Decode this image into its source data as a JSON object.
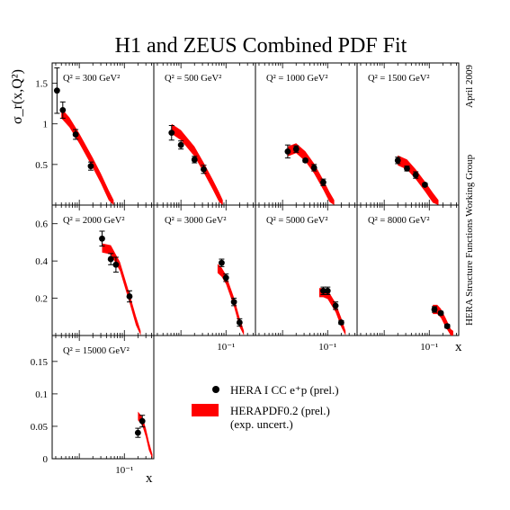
{
  "title": "H1 and ZEUS Combined PDF Fit",
  "date_label": "April 2009",
  "group_label": "HERA Structure Functions Working Group",
  "ylabel": "σ_r(x,Q²)",
  "xlabel": "x",
  "legend": {
    "data_label": "HERA I CC e⁺p (prel.)",
    "fit_label": "HERAPDF0.2 (prel.)",
    "fit_sublabel": "(exp. uncert.)"
  },
  "colors": {
    "fit": "#ff0000",
    "data": "#000000"
  },
  "chart_data": {
    "type": "scatter",
    "xscale": "log",
    "xlim": [
      0.0025,
      0.45
    ],
    "rows": [
      {
        "ylim": [
          0,
          1.75
        ],
        "yticks": [
          0.5,
          1,
          1.5
        ],
        "ytick_labels": [
          "0.5",
          "1",
          "1.5"
        ]
      },
      {
        "ylim": [
          0,
          0.7
        ],
        "yticks": [
          0.2,
          0.4,
          0.6
        ],
        "ytick_labels": [
          "0.2",
          "0.4",
          "0.6"
        ]
      },
      {
        "ylim": [
          0,
          0.19
        ],
        "yticks": [
          0,
          0.05,
          0.1,
          0.15
        ],
        "ytick_labels": [
          "0",
          "0.05",
          "0.1",
          "0.15"
        ]
      }
    ],
    "xtick_label": "10⁻¹",
    "panels": [
      {
        "label": "Q² = 300 GeV²",
        "row": 0,
        "col": 0,
        "points": [
          [
            0.0032,
            1.41,
            0.28
          ],
          [
            0.0043,
            1.17,
            0.1
          ],
          [
            0.0083,
            0.87,
            0.06
          ],
          [
            0.018,
            0.48,
            0.05
          ]
        ],
        "fit": [
          [
            0.004,
            1.13
          ],
          [
            0.006,
            1.02
          ],
          [
            0.01,
            0.82
          ],
          [
            0.02,
            0.52
          ],
          [
            0.03,
            0.33
          ],
          [
            0.045,
            0.12
          ],
          [
            0.058,
            0.0
          ]
        ]
      },
      {
        "label": "Q² = 500 GeV²",
        "row": 0,
        "col": 1,
        "points": [
          [
            0.0062,
            0.89,
            0.09
          ],
          [
            0.01,
            0.74,
            0.05
          ],
          [
            0.02,
            0.56,
            0.04
          ],
          [
            0.032,
            0.44,
            0.05
          ]
        ],
        "fit": [
          [
            0.0062,
            0.94
          ],
          [
            0.01,
            0.86
          ],
          [
            0.02,
            0.66
          ],
          [
            0.032,
            0.46
          ],
          [
            0.05,
            0.26
          ],
          [
            0.07,
            0.1
          ],
          [
            0.085,
            0.0
          ]
        ]
      },
      {
        "label": "Q² = 1000 GeV²",
        "row": 0,
        "col": 2,
        "points": [
          [
            0.013,
            0.66,
            0.08
          ],
          [
            0.02,
            0.69,
            0.04
          ],
          [
            0.032,
            0.55,
            0.02
          ],
          [
            0.05,
            0.46,
            0.04
          ],
          [
            0.08,
            0.28,
            0.04
          ]
        ],
        "fit": [
          [
            0.013,
            0.66
          ],
          [
            0.02,
            0.7
          ],
          [
            0.032,
            0.6
          ],
          [
            0.05,
            0.45
          ],
          [
            0.08,
            0.25
          ],
          [
            0.11,
            0.1
          ],
          [
            0.14,
            0.0
          ]
        ]
      },
      {
        "label": "Q² = 1500 GeV²",
        "row": 0,
        "col": 3,
        "points": [
          [
            0.02,
            0.55,
            0.04
          ],
          [
            0.032,
            0.45,
            0.03
          ],
          [
            0.05,
            0.37,
            0.04
          ],
          [
            0.08,
            0.25,
            0.02
          ]
        ],
        "fit": [
          [
            0.02,
            0.55
          ],
          [
            0.032,
            0.5
          ],
          [
            0.05,
            0.38
          ],
          [
            0.08,
            0.23
          ],
          [
            0.12,
            0.09
          ],
          [
            0.16,
            0.0
          ]
        ]
      },
      {
        "label": "Q² = 2000 GeV²",
        "row": 1,
        "col": 0,
        "points": [
          [
            0.032,
            0.52,
            0.04
          ],
          [
            0.05,
            0.41,
            0.03
          ],
          [
            0.065,
            0.38,
            0.04
          ],
          [
            0.13,
            0.21,
            0.03
          ]
        ],
        "fit": [
          [
            0.032,
            0.47
          ],
          [
            0.05,
            0.46
          ],
          [
            0.08,
            0.37
          ],
          [
            0.13,
            0.2
          ],
          [
            0.18,
            0.08
          ],
          [
            0.23,
            0.0
          ]
        ]
      },
      {
        "label": "Q² = 3000 GeV²",
        "row": 1,
        "col": 1,
        "points": [
          [
            0.08,
            0.39,
            0.02
          ],
          [
            0.1,
            0.31,
            0.02
          ],
          [
            0.15,
            0.18,
            0.02
          ],
          [
            0.2,
            0.07,
            0.02
          ]
        ],
        "fit": [
          [
            0.065,
            0.36
          ],
          [
            0.08,
            0.34
          ],
          [
            0.1,
            0.3
          ],
          [
            0.15,
            0.18
          ],
          [
            0.2,
            0.07
          ],
          [
            0.25,
            0.0
          ]
        ]
      },
      {
        "label": "Q² = 5000 GeV²",
        "row": 1,
        "col": 2,
        "points": [
          [
            0.08,
            0.24,
            0.02
          ],
          [
            0.1,
            0.24,
            0.02
          ],
          [
            0.15,
            0.16,
            0.02
          ],
          [
            0.2,
            0.07,
            0.01
          ]
        ],
        "fit": [
          [
            0.065,
            0.23
          ],
          [
            0.08,
            0.23
          ],
          [
            0.1,
            0.22
          ],
          [
            0.15,
            0.15
          ],
          [
            0.2,
            0.07
          ],
          [
            0.25,
            0.0
          ]
        ]
      },
      {
        "label": "Q² = 8000 GeV²",
        "row": 1,
        "col": 3,
        "points": [
          [
            0.13,
            0.14,
            0.015
          ],
          [
            0.18,
            0.12,
            0.01
          ],
          [
            0.25,
            0.05,
            0.01
          ]
        ],
        "fit": [
          [
            0.12,
            0.14
          ],
          [
            0.15,
            0.14
          ],
          [
            0.18,
            0.12
          ],
          [
            0.23,
            0.07
          ],
          [
            0.3,
            0.01
          ],
          [
            0.34,
            0.0
          ]
        ]
      },
      {
        "label": "Q² = 15000 GeV²",
        "row": 2,
        "col": 0,
        "points": [
          [
            0.2,
            0.04,
            0.007
          ],
          [
            0.25,
            0.058,
            0.009
          ]
        ],
        "fit": [
          [
            0.2,
            0.066
          ],
          [
            0.25,
            0.058
          ],
          [
            0.3,
            0.04
          ],
          [
            0.35,
            0.02
          ],
          [
            0.42,
            0.0
          ]
        ]
      }
    ]
  }
}
